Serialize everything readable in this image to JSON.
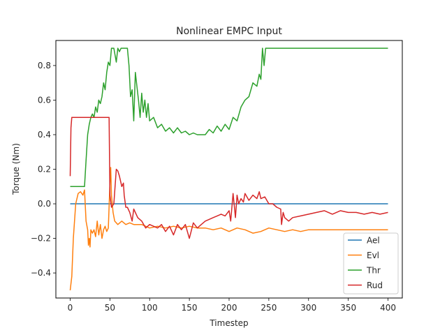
{
  "chart_data": {
    "type": "line",
    "title": "Nonlinear EMPC Input",
    "xlabel": "Timestep",
    "ylabel": "Torque (Nm)",
    "xlim": [
      -18,
      418
    ],
    "ylim": [
      -0.545,
      0.945
    ],
    "xticks": [
      0,
      50,
      100,
      150,
      200,
      250,
      300,
      350,
      400
    ],
    "yticks": [
      -0.4,
      -0.2,
      0.0,
      0.2,
      0.4,
      0.6,
      0.8
    ],
    "ytick_labels": [
      "−0.4",
      "−0.2",
      "0.0",
      "0.2",
      "0.4",
      "0.6",
      "0.8"
    ],
    "grid": false,
    "legend_position": "lower-right",
    "series": [
      {
        "name": "Ael",
        "color": "#1f77b4",
        "x": [
          0,
          400
        ],
        "y": [
          0.0,
          0.0
        ]
      },
      {
        "name": "Evl",
        "color": "#ff7f0e",
        "x": [
          0,
          2,
          4,
          7,
          10,
          13,
          16,
          18,
          20,
          22,
          23,
          24,
          25,
          26,
          28,
          30,
          32,
          34,
          36,
          38,
          40,
          42,
          44,
          46,
          48,
          50,
          51,
          52,
          54,
          56,
          60,
          65,
          70,
          75,
          80,
          90,
          100,
          110,
          120,
          130,
          140,
          150,
          160,
          170,
          180,
          190,
          200,
          210,
          220,
          230,
          240,
          250,
          260,
          270,
          280,
          290,
          300,
          320,
          340,
          360,
          380,
          400
        ],
        "y": [
          -0.5,
          -0.42,
          -0.2,
          0.0,
          0.06,
          0.07,
          0.05,
          0.08,
          -0.1,
          -0.15,
          -0.24,
          -0.2,
          -0.25,
          -0.15,
          -0.17,
          -0.15,
          -0.19,
          -0.1,
          -0.18,
          -0.12,
          -0.2,
          -0.15,
          -0.13,
          -0.16,
          -0.14,
          0.12,
          0.21,
          0.05,
          -0.05,
          -0.1,
          -0.12,
          -0.1,
          -0.12,
          -0.11,
          -0.12,
          -0.12,
          -0.14,
          -0.13,
          -0.14,
          -0.13,
          -0.14,
          -0.13,
          -0.14,
          -0.14,
          -0.15,
          -0.14,
          -0.16,
          -0.14,
          -0.15,
          -0.17,
          -0.16,
          -0.14,
          -0.15,
          -0.16,
          -0.15,
          -0.16,
          -0.15,
          -0.15,
          -0.15,
          -0.15,
          -0.15,
          -0.15
        ]
      },
      {
        "name": "Thr",
        "color": "#2ca02c",
        "x": [
          0,
          18,
          20,
          22,
          24,
          26,
          28,
          30,
          32,
          34,
          36,
          38,
          40,
          42,
          44,
          46,
          48,
          50,
          52,
          55,
          58,
          60,
          62,
          64,
          68,
          72,
          74,
          76,
          78,
          80,
          82,
          84,
          86,
          88,
          90,
          92,
          94,
          96,
          98,
          100,
          105,
          110,
          115,
          120,
          125,
          130,
          135,
          140,
          145,
          150,
          155,
          160,
          165,
          170,
          175,
          180,
          185,
          190,
          195,
          200,
          205,
          210,
          215,
          220,
          225,
          230,
          235,
          238,
          240,
          242,
          244,
          246,
          250,
          260,
          280,
          300,
          320,
          340,
          360,
          380,
          400
        ],
        "y": [
          0.1,
          0.1,
          0.25,
          0.4,
          0.46,
          0.5,
          0.52,
          0.5,
          0.56,
          0.53,
          0.6,
          0.58,
          0.62,
          0.7,
          0.66,
          0.76,
          0.82,
          0.8,
          0.9,
          0.9,
          0.82,
          0.9,
          0.88,
          0.9,
          0.9,
          0.9,
          0.8,
          0.62,
          0.66,
          0.48,
          0.76,
          0.68,
          0.6,
          0.5,
          0.64,
          0.53,
          0.6,
          0.5,
          0.58,
          0.48,
          0.5,
          0.44,
          0.46,
          0.42,
          0.44,
          0.41,
          0.44,
          0.41,
          0.42,
          0.4,
          0.41,
          0.4,
          0.4,
          0.4,
          0.43,
          0.41,
          0.45,
          0.42,
          0.46,
          0.43,
          0.5,
          0.48,
          0.56,
          0.6,
          0.62,
          0.7,
          0.68,
          0.75,
          0.72,
          0.9,
          0.8,
          0.9,
          0.9,
          0.9,
          0.9,
          0.9,
          0.9,
          0.9,
          0.9,
          0.9,
          0.9
        ]
      },
      {
        "name": "Rud",
        "color": "#d62728",
        "x": [
          0,
          1,
          2,
          5,
          10,
          20,
          30,
          40,
          45,
          49,
          50,
          52,
          55,
          58,
          60,
          62,
          65,
          67,
          68,
          70,
          72,
          75,
          78,
          80,
          85,
          90,
          95,
          100,
          105,
          110,
          115,
          120,
          125,
          130,
          135,
          140,
          145,
          150,
          155,
          160,
          165,
          170,
          175,
          180,
          185,
          190,
          195,
          200,
          202,
          205,
          208,
          210,
          212,
          215,
          218,
          220,
          225,
          230,
          235,
          238,
          240,
          245,
          250,
          255,
          260,
          265,
          266,
          268,
          270,
          275,
          280,
          290,
          300,
          310,
          320,
          330,
          340,
          350,
          360,
          370,
          380,
          390,
          400
        ],
        "y": [
          0.16,
          0.44,
          0.5,
          0.5,
          0.5,
          0.5,
          0.5,
          0.5,
          0.5,
          0.5,
          0.05,
          -0.02,
          0.0,
          0.2,
          0.19,
          0.16,
          0.1,
          0.12,
          0.05,
          -0.02,
          -0.02,
          -0.05,
          -0.1,
          -0.03,
          -0.08,
          -0.1,
          -0.14,
          -0.12,
          -0.13,
          -0.14,
          -0.12,
          -0.16,
          -0.13,
          -0.18,
          -0.12,
          -0.15,
          -0.12,
          -0.2,
          -0.11,
          -0.14,
          -0.12,
          -0.1,
          -0.09,
          -0.08,
          -0.07,
          -0.06,
          -0.07,
          -0.04,
          -0.1,
          0.06,
          -0.08,
          0.05,
          0.0,
          0.03,
          0.01,
          0.06,
          0.02,
          0.05,
          0.03,
          0.07,
          0.03,
          0.04,
          0.0,
          0.0,
          -0.02,
          -0.03,
          -0.12,
          -0.05,
          -0.08,
          -0.1,
          -0.08,
          -0.07,
          -0.06,
          -0.05,
          -0.04,
          -0.06,
          -0.04,
          -0.05,
          -0.05,
          -0.06,
          -0.05,
          -0.06,
          -0.05
        ]
      }
    ]
  }
}
